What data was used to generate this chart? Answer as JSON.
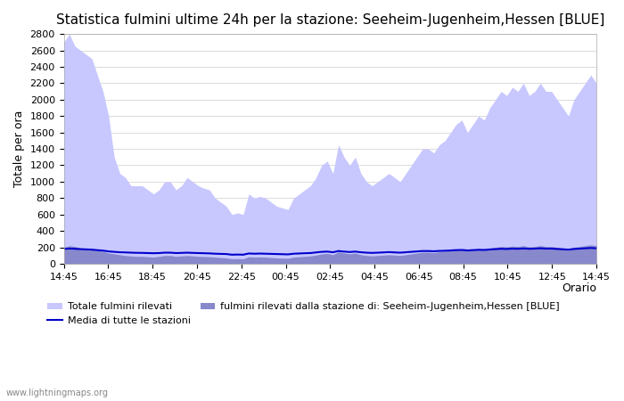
{
  "title": "Statistica fulmini ultime 24h per la stazione: Seeheim-Jugenheim,Hessen [BLUE]",
  "ylabel": "Totale per ora",
  "xlabel_right": "Orario",
  "x_labels": [
    "14:45",
    "16:45",
    "18:45",
    "20:45",
    "22:45",
    "00:45",
    "02:45",
    "04:45",
    "06:45",
    "08:45",
    "10:45",
    "12:45",
    "14:45"
  ],
  "legend_total": "Totale fulmini rilevati",
  "legend_station": "fulmini rilevati dalla stazione di: Seeheim-Jugenheim,Hessen [BLUE]",
  "legend_mean": "Media di tutte le stazioni",
  "watermark": "www.lightningmaps.org",
  "ylim": [
    0,
    2800
  ],
  "yticks": [
    0,
    200,
    400,
    600,
    800,
    1000,
    1200,
    1400,
    1600,
    1800,
    2000,
    2200,
    2400,
    2600,
    2800
  ],
  "fill_total_color": "#c8c8ff",
  "fill_station_color": "#8888cc",
  "line_mean_color": "#0000cc",
  "background_color": "#ffffff",
  "total_values": [
    2700,
    2800,
    2650,
    2600,
    2550,
    2500,
    2300,
    2100,
    1800,
    1300,
    1100,
    1050,
    950,
    950,
    950,
    900,
    850,
    900,
    1000,
    1000,
    900,
    950,
    1050,
    1000,
    950,
    920,
    900,
    800,
    750,
    700,
    600,
    620,
    600,
    850,
    800,
    820,
    800,
    750,
    700,
    680,
    660,
    800,
    850,
    900,
    950,
    1050,
    1200,
    1250,
    1100,
    1450,
    1300,
    1200,
    1300,
    1100,
    1000,
    950,
    1000,
    1050,
    1100,
    1050,
    1000,
    1100,
    1200,
    1300,
    1400,
    1400,
    1350,
    1450,
    1500,
    1600,
    1700,
    1750,
    1600,
    1700,
    1800,
    1750,
    1900,
    2000,
    2100,
    2050,
    2150,
    2100,
    2200,
    2050,
    2100,
    2200,
    2100,
    2100,
    2000,
    1900,
    1800,
    2000,
    2100,
    2200,
    2300,
    2200
  ],
  "station_values": [
    200,
    220,
    210,
    190,
    180,
    170,
    160,
    150,
    130,
    120,
    110,
    100,
    95,
    90,
    90,
    85,
    80,
    90,
    100,
    100,
    90,
    95,
    100,
    95,
    90,
    88,
    85,
    80,
    75,
    70,
    60,
    62,
    60,
    85,
    80,
    82,
    80,
    75,
    70,
    68,
    66,
    80,
    85,
    90,
    95,
    105,
    120,
    125,
    110,
    145,
    130,
    120,
    130,
    110,
    100,
    95,
    100,
    105,
    110,
    105,
    100,
    110,
    120,
    130,
    140,
    140,
    135,
    145,
    150,
    160,
    170,
    175,
    160,
    170,
    180,
    175,
    190,
    200,
    210,
    205,
    215,
    210,
    220,
    205,
    210,
    220,
    210,
    210,
    200,
    190,
    180,
    200,
    210,
    220,
    230,
    220
  ],
  "mean_values": [
    180,
    185,
    182,
    178,
    175,
    172,
    165,
    160,
    150,
    145,
    140,
    138,
    135,
    133,
    132,
    130,
    128,
    130,
    135,
    135,
    130,
    132,
    135,
    132,
    130,
    128,
    126,
    122,
    120,
    118,
    110,
    112,
    110,
    125,
    122,
    124,
    122,
    120,
    118,
    116,
    114,
    122,
    125,
    128,
    130,
    138,
    145,
    148,
    140,
    155,
    148,
    143,
    148,
    140,
    135,
    132,
    135,
    138,
    142,
    138,
    135,
    140,
    145,
    150,
    155,
    155,
    152,
    156,
    158,
    162,
    166,
    168,
    162,
    166,
    170,
    168,
    174,
    178,
    182,
    180,
    184,
    182,
    186,
    182,
    184,
    188,
    184,
    184,
    180,
    176,
    172,
    180,
    184,
    188,
    192,
    188
  ]
}
